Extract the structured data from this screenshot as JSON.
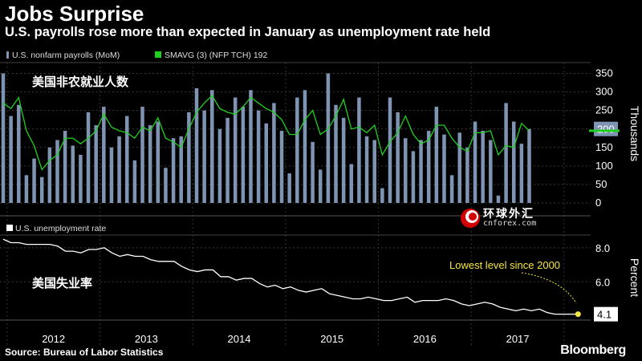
{
  "header": {
    "title": "Jobs Surprise",
    "subtitle": "U.S. payrolls rose more than expected in January as unemployment rate held"
  },
  "footer": {
    "source": "Source: Bureau of Labor Statistics",
    "brand": "Bloomberg"
  },
  "watermark": {
    "main": "环球外汇",
    "sub": "cnforex.com"
  },
  "colors": {
    "background": "#000000",
    "bars": "#7f93b3",
    "sma_line": "#1fd11f",
    "unemployment_line": "#ffffff",
    "highlight": "#f5e642"
  },
  "chart_data": [
    {
      "type": "bar",
      "legend": [
        "U.S. nonfarm payrolls (MoM)",
        "SMAVG (3)  (NFP TCH) 192"
      ],
      "annotation": "美国非农就业人数",
      "ylabel": "Thousands",
      "ylim": [
        0,
        375
      ],
      "yticks": [
        0,
        50,
        100,
        150,
        200,
        250,
        300,
        350
      ],
      "last_value_label": "200",
      "x_start": "2011-12",
      "series": [
        {
          "name": "U.S. nonfarm payrolls (MoM)",
          "values": [
            350,
            235,
            265,
            75,
            120,
            70,
            150,
            170,
            195,
            155,
            130,
            245,
            210,
            260,
            150,
            180,
            235,
            115,
            260,
            210,
            220,
            95,
            175,
            180,
            245,
            310,
            250,
            305,
            200,
            230,
            285,
            260,
            305,
            250,
            215,
            270,
            195,
            80,
            285,
            305,
            165,
            90,
            350,
            265,
            230,
            105,
            285,
            180,
            170,
            40,
            285,
            245,
            175,
            140,
            170,
            195,
            260,
            185,
            75,
            190,
            150,
            220,
            195,
            170,
            20,
            270,
            220,
            160,
            200
          ]
        },
        {
          "name": "SMAVG (3)  (NFP TCH) 192",
          "values": [
            270,
            255,
            285,
            195,
            155,
            90,
            115,
            130,
            175,
            175,
            160,
            175,
            195,
            240,
            205,
            195,
            190,
            175,
            205,
            195,
            230,
            175,
            165,
            150,
            200,
            245,
            270,
            290,
            255,
            245,
            240,
            260,
            285,
            270,
            255,
            245,
            225,
            185,
            185,
            225,
            250,
            185,
            200,
            235,
            280,
            200,
            205,
            190,
            210,
            130,
            165,
            190,
            235,
            185,
            160,
            170,
            210,
            210,
            175,
            150,
            140,
            190,
            190,
            195,
            130,
            155,
            150,
            215,
            195
          ]
        }
      ]
    },
    {
      "type": "line",
      "legend": [
        "U.S. unemployment rate"
      ],
      "annotation": "美国失业率",
      "callout": "Lowest level since 2000",
      "ylabel": "Percent",
      "ylim": [
        3.8,
        8.7
      ],
      "yticks": [
        6.0,
        8.0
      ],
      "last_value_label": "4.1",
      "x_start": "2011-12",
      "values": [
        8.5,
        8.3,
        8.3,
        8.2,
        8.2,
        8.2,
        8.2,
        8.1,
        7.8,
        7.8,
        7.7,
        7.9,
        7.9,
        8.0,
        7.7,
        7.5,
        7.6,
        7.5,
        7.5,
        7.3,
        7.2,
        7.2,
        7.2,
        6.9,
        6.7,
        6.6,
        6.7,
        6.7,
        6.3,
        6.3,
        6.1,
        6.2,
        6.2,
        5.9,
        5.7,
        5.8,
        5.6,
        5.7,
        5.5,
        5.4,
        5.5,
        5.6,
        5.3,
        5.2,
        5.1,
        5.0,
        5.0,
        5.1,
        5.0,
        4.9,
        4.9,
        5.0,
        5.1,
        4.8,
        4.9,
        4.9,
        4.9,
        5.0,
        4.9,
        4.7,
        4.6,
        4.7,
        4.8,
        4.7,
        4.5,
        4.4,
        4.3,
        4.4,
        4.3,
        4.4,
        4.2,
        4.1,
        4.1,
        4.1,
        4.1
      ]
    }
  ],
  "x_axis": {
    "years": [
      "2012",
      "2013",
      "2014",
      "2015",
      "2016",
      "2017"
    ]
  }
}
